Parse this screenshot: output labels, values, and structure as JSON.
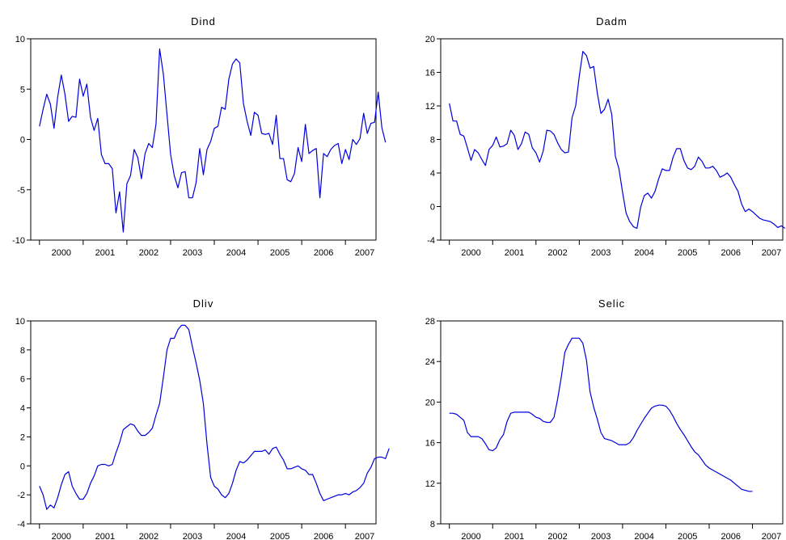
{
  "colors": {
    "series": "#0000dd",
    "axes": "#000000",
    "background": "#ffffff"
  },
  "chart_data": [
    {
      "type": "line",
      "title": "Dind",
      "xlabel": "",
      "ylabel": "",
      "ylim": [
        -10,
        10
      ],
      "yticks": [
        -10,
        -5,
        0,
        5,
        10
      ],
      "ytick_labels": [
        "-10",
        "-5",
        "0",
        "5",
        "10"
      ],
      "x_start": 2000.0,
      "x_step": 0.0833333,
      "xlim": [
        1999.8,
        2007.7
      ],
      "xtick_labels": [
        "2000",
        "2001",
        "2002",
        "2003",
        "2004",
        "2005",
        "2006",
        "2007"
      ],
      "grid": false,
      "legend": "none",
      "values": [
        1.3,
        3.0,
        4.5,
        3.5,
        1.1,
        4.2,
        6.4,
        4.5,
        1.8,
        2.3,
        2.2,
        6.0,
        4.3,
        5.5,
        2.2,
        0.9,
        2.1,
        -1.5,
        -2.4,
        -2.4,
        -2.9,
        -7.3,
        -5.2,
        -9.2,
        -4.4,
        -3.6,
        -1.0,
        -1.8,
        -3.9,
        -1.4,
        -0.4,
        -0.8,
        1.5,
        9.0,
        6.5,
        2.5,
        -1.5,
        -3.6,
        -4.8,
        -3.3,
        -3.2,
        -5.8,
        -5.8,
        -4.3,
        -0.9,
        -3.5,
        -1.0,
        -0.2,
        1.1,
        1.3,
        3.2,
        3.0,
        6.0,
        7.5,
        8.0,
        7.6,
        3.6,
        1.8,
        0.4,
        2.7,
        2.4,
        0.6,
        0.5,
        0.6,
        -0.5,
        2.4,
        -1.9,
        -1.9,
        -4.0,
        -4.2,
        -3.4,
        -0.8,
        -2.2,
        1.5,
        -1.4,
        -1.1,
        -0.9,
        -5.8,
        -1.4,
        -1.7,
        -1.0,
        -0.6,
        -0.4,
        -2.4,
        -1.0,
        -2.0,
        0.0,
        -0.5,
        0.1,
        2.6,
        0.6,
        1.6,
        1.7,
        4.7,
        1.2,
        -0.3
      ]
    },
    {
      "type": "line",
      "title": "Dadm",
      "xlabel": "",
      "ylabel": "",
      "ylim": [
        -4,
        20
      ],
      "yticks": [
        -4,
        0,
        4,
        8,
        12,
        16,
        20
      ],
      "ytick_labels": [
        "-4",
        "0",
        "4",
        "8",
        "12",
        "16",
        "20"
      ],
      "x_start": 2000.0,
      "x_step": 0.0833333,
      "xlim": [
        1999.8,
        2007.7
      ],
      "xtick_labels": [
        "2000",
        "2001",
        "2002",
        "2003",
        "2004",
        "2005",
        "2006",
        "2007"
      ],
      "grid": false,
      "legend": "none",
      "values": [
        12.3,
        10.2,
        10.2,
        8.6,
        8.4,
        7.0,
        5.5,
        6.8,
        6.4,
        5.6,
        4.9,
        6.8,
        7.3,
        8.3,
        7.1,
        7.2,
        7.5,
        9.1,
        8.5,
        6.8,
        7.5,
        8.9,
        8.6,
        7.0,
        6.4,
        5.3,
        6.6,
        9.1,
        9.0,
        8.6,
        7.6,
        6.8,
        6.4,
        6.5,
        10.6,
        12.0,
        15.5,
        18.5,
        18.0,
        16.5,
        16.7,
        13.5,
        11.1,
        11.6,
        12.8,
        11.0,
        6.0,
        4.5,
        1.7,
        -0.8,
        -1.8,
        -2.4,
        -2.6,
        -0.1,
        1.3,
        1.6,
        1.0,
        1.8,
        3.3,
        4.5,
        4.3,
        4.3,
        5.9,
        6.9,
        6.9,
        5.5,
        4.6,
        4.4,
        4.8,
        5.9,
        5.4,
        4.6,
        4.6,
        4.8,
        4.3,
        3.5,
        3.7,
        4.0,
        3.5,
        2.6,
        1.8,
        0.3,
        -0.6,
        -0.3,
        -0.6,
        -1.0,
        -1.4,
        -1.6,
        -1.7,
        -1.8,
        -2.1,
        -2.5,
        -2.3,
        -2.6
      ]
    },
    {
      "type": "line",
      "title": "Dliv",
      "xlabel": "",
      "ylabel": "",
      "ylim": [
        -4,
        10
      ],
      "yticks": [
        -4,
        -2,
        0,
        2,
        4,
        6,
        8,
        10
      ],
      "ytick_labels": [
        "-4",
        "-2",
        "0",
        "2",
        "4",
        "6",
        "8",
        "10"
      ],
      "x_start": 2000.0,
      "x_step": 0.0833333,
      "xlim": [
        1999.8,
        2007.7
      ],
      "xtick_labels": [
        "2000",
        "2001",
        "2002",
        "2003",
        "2004",
        "2005",
        "2006",
        "2007"
      ],
      "grid": false,
      "legend": "none",
      "values": [
        -1.4,
        -2.0,
        -3.0,
        -2.7,
        -2.9,
        -2.2,
        -1.3,
        -0.6,
        -0.4,
        -1.4,
        -1.9,
        -2.3,
        -2.3,
        -1.9,
        -1.2,
        -0.7,
        0.0,
        0.1,
        0.1,
        0.0,
        0.1,
        0.9,
        1.6,
        2.5,
        2.7,
        2.9,
        2.8,
        2.4,
        2.1,
        2.1,
        2.3,
        2.6,
        3.5,
        4.3,
        6.1,
        8.0,
        8.8,
        8.8,
        9.4,
        9.7,
        9.7,
        9.4,
        8.2,
        7.1,
        5.9,
        4.3,
        1.5,
        -0.8,
        -1.4,
        -1.6,
        -2.0,
        -2.2,
        -1.9,
        -1.2,
        -0.3,
        0.3,
        0.2,
        0.4,
        0.7,
        1.0,
        1.0,
        1.0,
        1.1,
        0.8,
        1.2,
        1.3,
        0.8,
        0.4,
        -0.2,
        -0.2,
        -0.1,
        0.0,
        -0.2,
        -0.3,
        -0.6,
        -0.6,
        -1.2,
        -1.9,
        -2.4,
        -2.3,
        -2.2,
        -2.1,
        -2.0,
        -2.0,
        -1.9,
        -2.0,
        -1.8,
        -1.7,
        -1.5,
        -1.2,
        -0.5,
        -0.1,
        0.5,
        0.6,
        0.6,
        0.5,
        1.2
      ]
    },
    {
      "type": "line",
      "title": "Selic",
      "xlabel": "",
      "ylabel": "",
      "ylim": [
        8,
        28
      ],
      "yticks": [
        8,
        12,
        16,
        20,
        24,
        28
      ],
      "ytick_labels": [
        "8",
        "12",
        "16",
        "20",
        "24",
        "28"
      ],
      "x_start": 2000.0,
      "x_step": 0.0833333,
      "xlim": [
        1999.8,
        2007.7
      ],
      "xtick_labels": [
        "2000",
        "2001",
        "2002",
        "2003",
        "2004",
        "2005",
        "2006",
        "2007"
      ],
      "grid": false,
      "legend": "none",
      "values": [
        18.9,
        18.9,
        18.8,
        18.5,
        18.2,
        17.0,
        16.6,
        16.6,
        16.6,
        16.4,
        15.9,
        15.3,
        15.2,
        15.5,
        16.3,
        16.8,
        18.1,
        18.9,
        19.0,
        19.0,
        19.0,
        19.0,
        19.0,
        18.8,
        18.5,
        18.4,
        18.1,
        18.0,
        18.0,
        18.5,
        20.3,
        22.4,
        24.9,
        25.7,
        26.3,
        26.3,
        26.3,
        25.8,
        24.1,
        21.0,
        19.5,
        18.3,
        17.0,
        16.4,
        16.3,
        16.2,
        16.0,
        15.8,
        15.8,
        15.8,
        16.0,
        16.5,
        17.2,
        17.8,
        18.4,
        18.9,
        19.4,
        19.6,
        19.7,
        19.7,
        19.6,
        19.2,
        18.6,
        17.9,
        17.3,
        16.8,
        16.2,
        15.6,
        15.1,
        14.8,
        14.3,
        13.8,
        13.5,
        13.3,
        13.1,
        12.9,
        12.7,
        12.5,
        12.3,
        12.0,
        11.7,
        11.4,
        11.3,
        11.2,
        11.2
      ]
    }
  ]
}
